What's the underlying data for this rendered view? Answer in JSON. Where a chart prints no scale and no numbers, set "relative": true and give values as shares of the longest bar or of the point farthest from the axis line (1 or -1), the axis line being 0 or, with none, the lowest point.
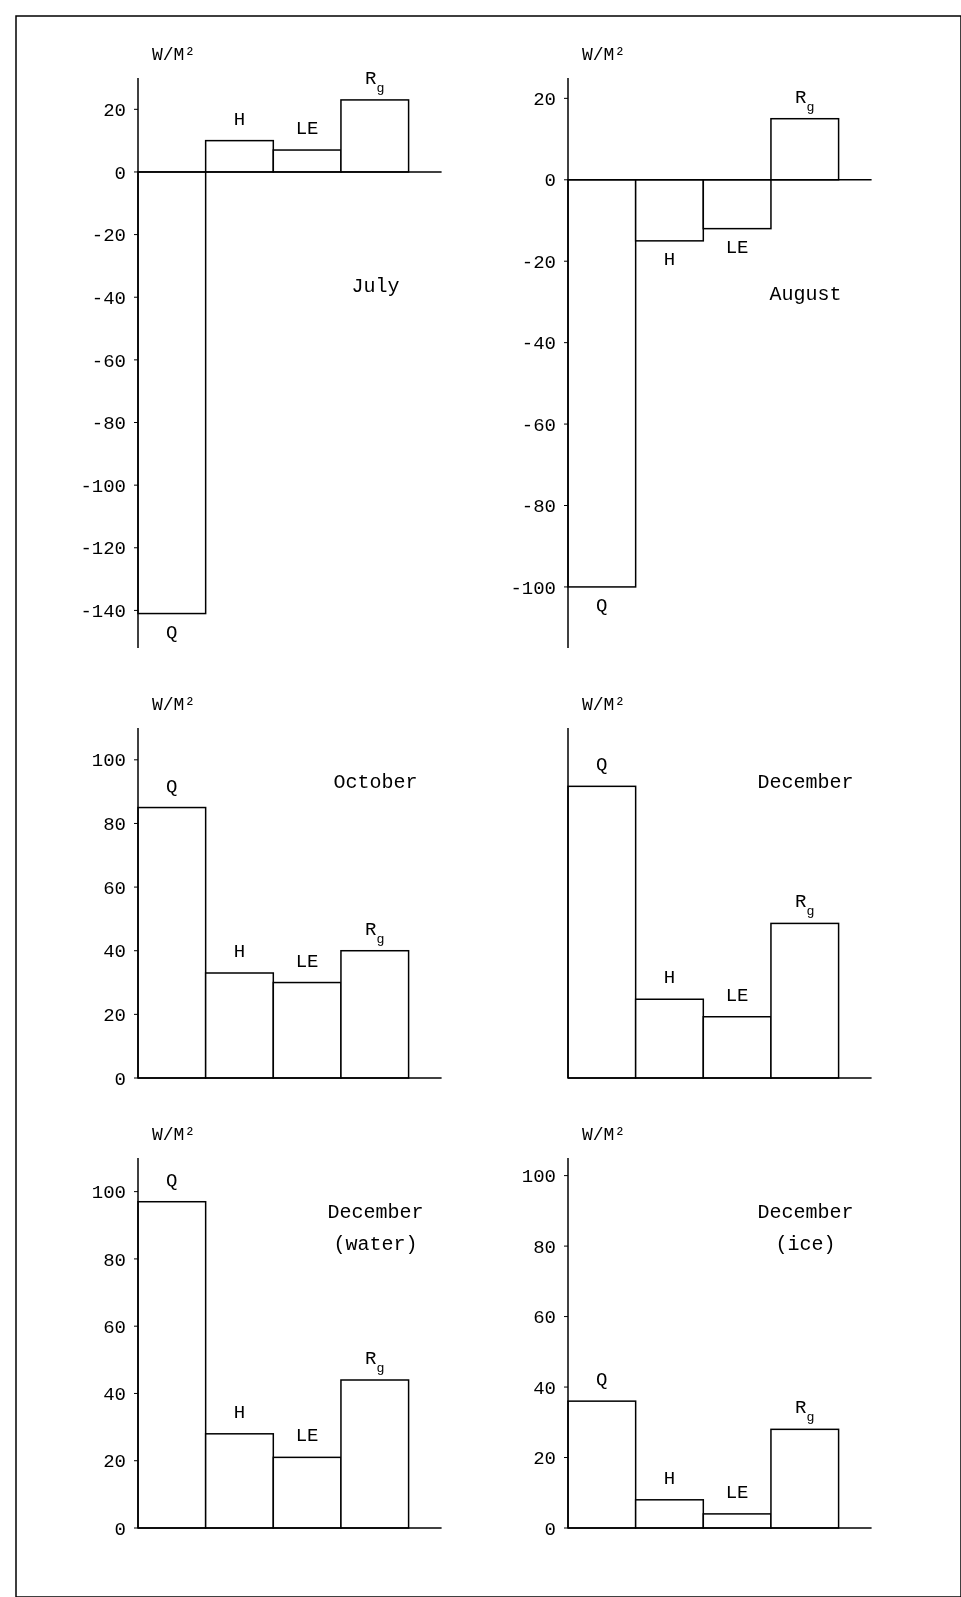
{
  "chart_data": [
    {
      "type": "bar",
      "title": "July",
      "ylabel": "W/M²",
      "categories": [
        "Q",
        "H",
        "LE",
        "R$_{g}$"
      ],
      "values": [
        -141,
        10,
        7,
        23
      ],
      "ylim": [
        -152,
        30
      ],
      "yticks": [
        20,
        0,
        -20,
        -40,
        -60,
        -80,
        -100,
        -120,
        -140
      ]
    },
    {
      "type": "bar",
      "title": "August",
      "ylabel": "W/M²",
      "categories": [
        "Q",
        "H",
        "LE",
        "R$_{g}$"
      ],
      "values": [
        -100,
        -15,
        -12,
        15
      ],
      "ylim": [
        -115,
        25
      ],
      "yticks": [
        20,
        0,
        -20,
        -40,
        -60,
        -80,
        -100
      ]
    },
    {
      "type": "bar",
      "title": "October",
      "ylabel": "W/M²",
      "categories": [
        "Q",
        "H",
        "LE",
        "R$_{g}$"
      ],
      "values": [
        85,
        33,
        30,
        40
      ],
      "ylim": [
        0,
        110
      ],
      "yticks": [
        0,
        20,
        40,
        60,
        80,
        100
      ]
    },
    {
      "type": "bar",
      "title": "December",
      "ylabel": "W/M²",
      "categories": [
        "Q",
        "H",
        "LE",
        "R$_{g}$"
      ],
      "values": [
        1,
        0.27,
        0.21,
        0.53
      ],
      "relative": true
    },
    {
      "type": "bar",
      "title": "December\n(water)",
      "ylabel": "W/M²",
      "categories": [
        "Q",
        "H",
        "LE",
        "R$_{g}$"
      ],
      "values": [
        97,
        28,
        21,
        44
      ],
      "ylim": [
        0,
        110
      ],
      "yticks": [
        0,
        20,
        40,
        60,
        80,
        100
      ]
    },
    {
      "type": "bar",
      "title": "December\n(ice)",
      "ylabel": "W/M²",
      "categories": [
        "Q",
        "H",
        "LE",
        "R$_{g}$"
      ],
      "values": [
        36,
        8,
        4,
        28
      ],
      "ylim": [
        0,
        105
      ],
      "yticks": [
        0,
        20,
        40,
        60,
        80,
        100
      ]
    }
  ]
}
